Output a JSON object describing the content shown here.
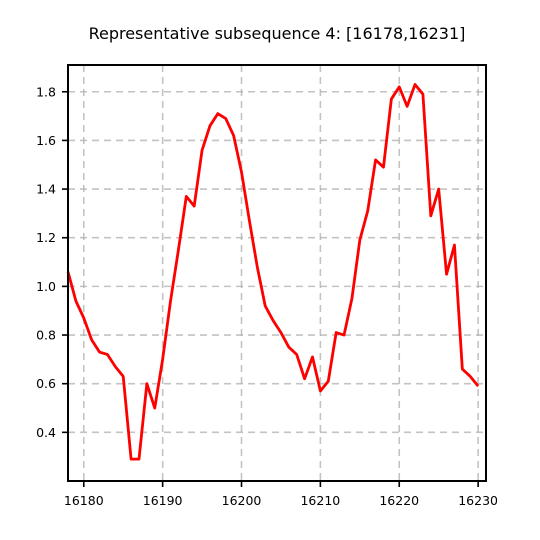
{
  "chart_data": {
    "type": "line",
    "title": "Representative subsequence 4: [16178,16231]",
    "xlabel": "",
    "ylabel": "",
    "xlim": [
      16178,
      16231
    ],
    "ylim": [
      0.2,
      1.91
    ],
    "xticks": [
      16180,
      16190,
      16200,
      16210,
      16220,
      16230
    ],
    "yticks": [
      0.4,
      0.6,
      0.8,
      1.0,
      1.2,
      1.4,
      1.6,
      1.8
    ],
    "grid": true,
    "series": [
      {
        "name": "",
        "color": "#ff0000",
        "x": [
          16178,
          16179,
          16180,
          16181,
          16182,
          16183,
          16184,
          16185,
          16186,
          16187,
          16188,
          16189,
          16190,
          16191,
          16192,
          16193,
          16194,
          16195,
          16196,
          16197,
          16198,
          16199,
          16200,
          16201,
          16202,
          16203,
          16204,
          16205,
          16206,
          16207,
          16208,
          16209,
          16210,
          16211,
          16212,
          16213,
          16214,
          16215,
          16216,
          16217,
          16218,
          16219,
          16220,
          16221,
          16222,
          16223,
          16224,
          16225,
          16226,
          16227,
          16228,
          16229,
          16230
        ],
        "y": [
          1.06,
          0.94,
          0.87,
          0.78,
          0.73,
          0.72,
          0.67,
          0.63,
          0.29,
          0.29,
          0.6,
          0.5,
          0.7,
          0.94,
          1.15,
          1.37,
          1.33,
          1.56,
          1.66,
          1.71,
          1.69,
          1.62,
          1.47,
          1.27,
          1.08,
          0.92,
          0.86,
          0.81,
          0.75,
          0.72,
          0.62,
          0.71,
          0.57,
          0.61,
          0.81,
          0.8,
          0.95,
          1.19,
          1.31,
          1.52,
          1.49,
          1.77,
          1.82,
          1.74,
          1.83,
          1.79,
          1.29,
          1.4,
          1.05,
          1.17,
          0.66,
          0.63,
          0.59
        ]
      }
    ]
  }
}
